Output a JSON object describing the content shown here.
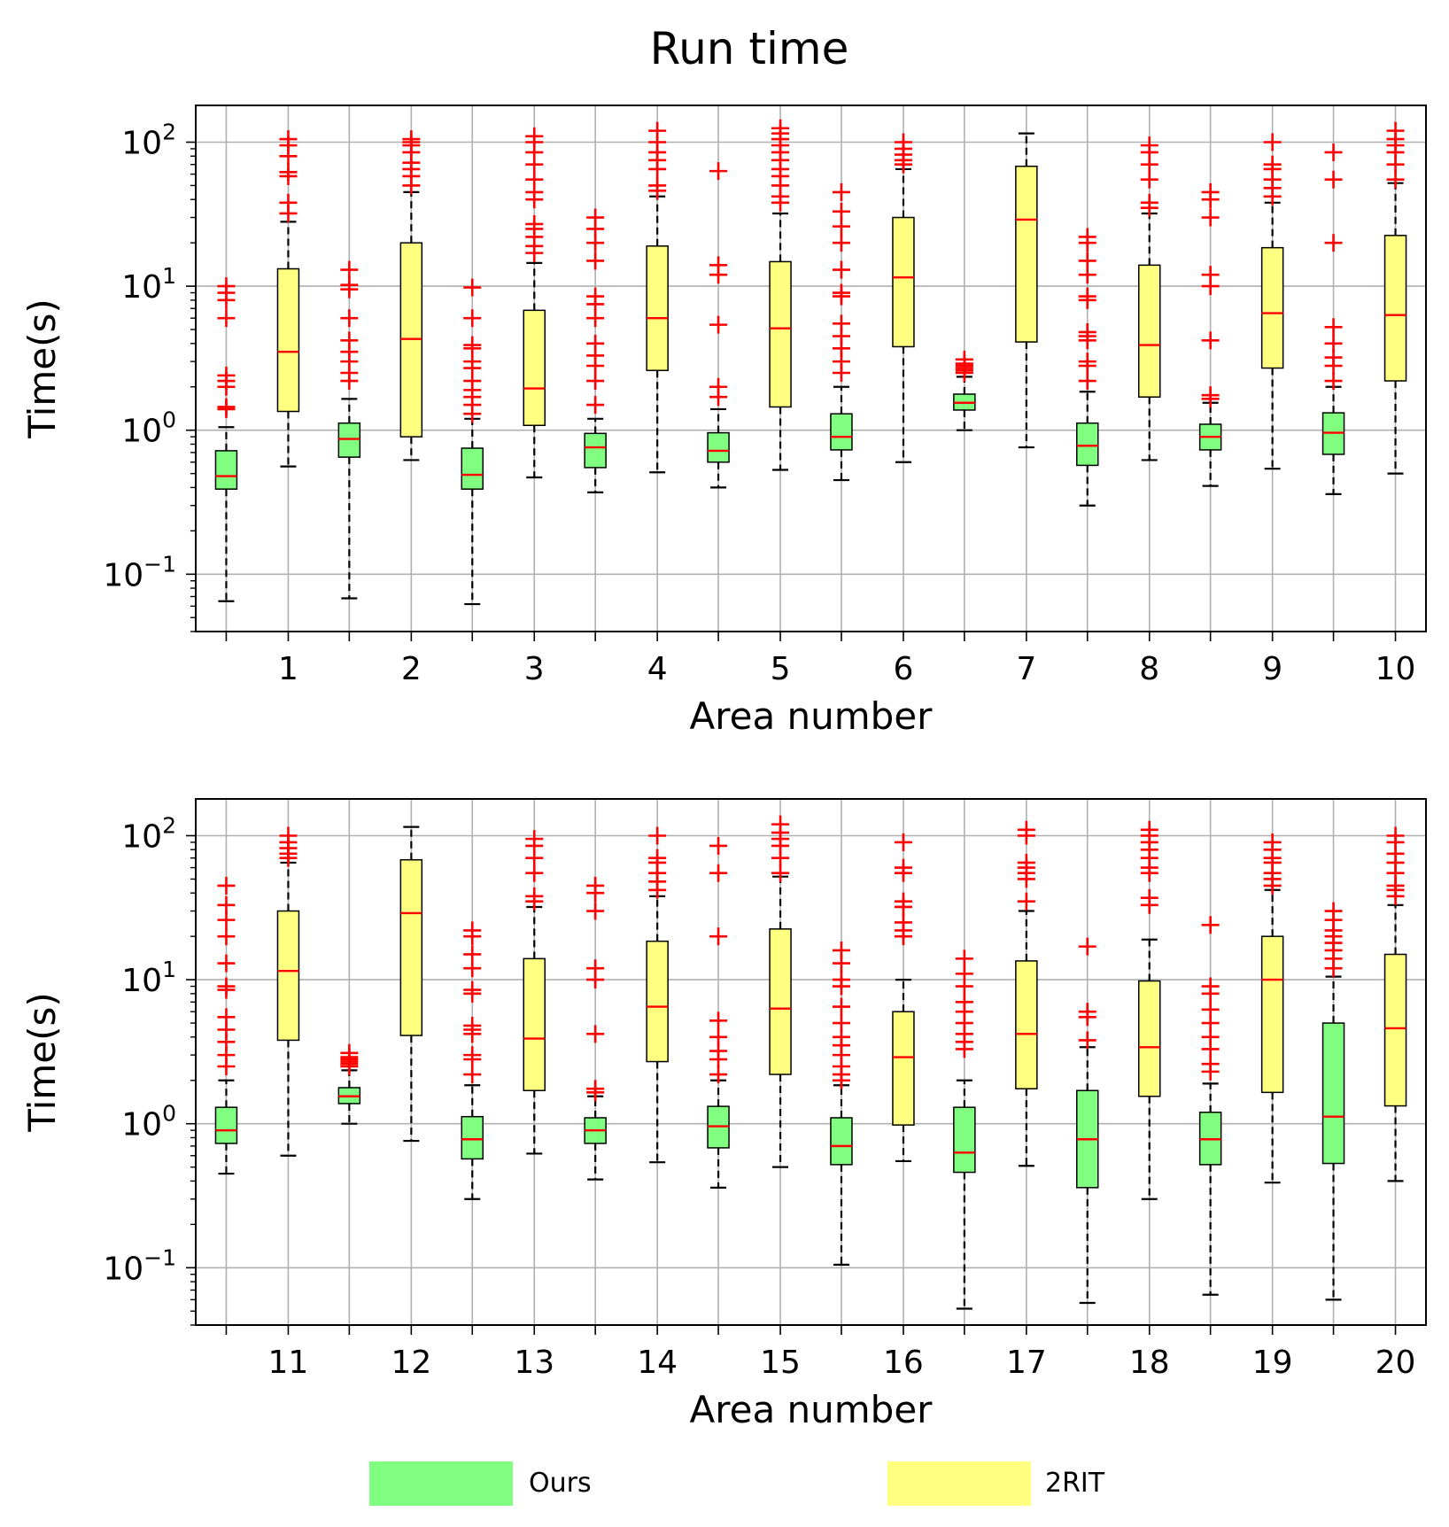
{
  "title": "Run time",
  "legend": [
    {
      "label": "Ours",
      "color": "#80ff80"
    },
    {
      "label": "2RIT",
      "color": "#ffff80"
    }
  ],
  "colors": {
    "median": "#ff0000",
    "outlier": "#ff0000",
    "whisker": "#000000",
    "grid": "#b0b0b0",
    "box_edge": "#000000"
  },
  "chart_data": [
    {
      "type": "boxplot",
      "xlabel": "Area number",
      "ylabel": "Time(s)",
      "yscale": "log",
      "ylim": [
        0.04,
        180
      ],
      "yticks": [
        {
          "base": "10",
          "exp": "2",
          "value": 100
        },
        {
          "base": "10",
          "exp": "1",
          "value": 10
        },
        {
          "base": "10",
          "exp": "0",
          "value": 1
        },
        {
          "base": "10",
          "exp": "−1",
          "value": 0.1
        }
      ],
      "grid": true,
      "categories": [
        "1",
        "2",
        "3",
        "4",
        "5",
        "6",
        "7",
        "8",
        "9",
        "10"
      ],
      "series": [
        {
          "name": "Ours",
          "boxes": [
            {
              "min": 0.065,
              "q1": 0.39,
              "median": 0.48,
              "q3": 0.72,
              "max": 1.05,
              "outliers": [
                1.4,
                1.45,
                2.0,
                2.2,
                2.4,
                6.0,
                8.0,
                9.0,
                10.0
              ]
            },
            {
              "min": 0.068,
              "q1": 0.65,
              "median": 0.87,
              "q3": 1.12,
              "max": 1.65,
              "outliers": [
                2.2,
                2.5,
                3.0,
                3.5,
                4.2,
                6.0,
                9.5,
                10.2,
                13.0
              ]
            },
            {
              "min": 0.062,
              "q1": 0.39,
              "median": 0.49,
              "q3": 0.75,
              "max": 1.2,
              "outliers": [
                1.3,
                1.5,
                1.7,
                1.9,
                2.2,
                2.7,
                3.0,
                3.7,
                3.9,
                6.0,
                9.8
              ]
            },
            {
              "min": 0.37,
              "q1": 0.55,
              "median": 0.76,
              "q3": 0.95,
              "max": 1.2,
              "outliers": [
                1.5,
                2.2,
                2.8,
                3.3,
                4.0,
                6.0,
                7.5,
                8.5,
                15.0,
                20.0,
                25.0,
                30.0
              ]
            },
            {
              "min": 0.4,
              "q1": 0.6,
              "median": 0.72,
              "q3": 0.96,
              "max": 1.4,
              "outliers": [
                1.7,
                2.0,
                5.4,
                12.0,
                14.0,
                63.0
              ]
            },
            {
              "min": 0.45,
              "q1": 0.73,
              "median": 0.9,
              "q3": 1.3,
              "max": 2.0,
              "outliers": [
                2.5,
                3.0,
                3.7,
                4.5,
                5.5,
                8.5,
                9.0,
                13.0,
                20.0,
                26.0,
                33.0,
                45.0
              ]
            },
            {
              "min": 1.0,
              "q1": 1.38,
              "median": 1.55,
              "q3": 1.78,
              "max": 2.35,
              "outliers": [
                2.5,
                2.6,
                2.7,
                2.8,
                2.9,
                3.1
              ]
            },
            {
              "min": 0.3,
              "q1": 0.57,
              "median": 0.78,
              "q3": 1.12,
              "max": 1.85,
              "outliers": [
                2.2,
                2.8,
                3.0,
                4.2,
                4.5,
                4.8,
                8.0,
                8.5,
                12.0,
                15.0,
                20.0,
                22.0
              ]
            },
            {
              "min": 0.41,
              "q1": 0.73,
              "median": 0.9,
              "q3": 1.1,
              "max": 1.55,
              "outliers": [
                1.65,
                1.75,
                4.2,
                10.0,
                12.0,
                30.0,
                40.0,
                45.0
              ]
            },
            {
              "min": 0.36,
              "q1": 0.68,
              "median": 0.96,
              "q3": 1.32,
              "max": 2.0,
              "outliers": [
                2.2,
                2.8,
                3.2,
                4.0,
                5.2,
                20.0,
                55.0,
                85.0
              ]
            }
          ]
        },
        {
          "name": "2RIT",
          "boxes": [
            {
              "min": 0.56,
              "q1": 1.35,
              "median": 3.5,
              "q3": 13.2,
              "max": 28.0,
              "outliers": [
                32.0,
                38.0,
                58.0,
                62.0,
                80.0,
                95.0,
                105.0
              ]
            },
            {
              "min": 0.62,
              "q1": 0.9,
              "median": 4.3,
              "q3": 20.0,
              "max": 45.0,
              "outliers": [
                50.0,
                58.0,
                65.0,
                72.0,
                85.0,
                95.0,
                100.0,
                105.0
              ]
            },
            {
              "min": 0.47,
              "q1": 1.08,
              "median": 1.95,
              "q3": 6.8,
              "max": 14.5,
              "outliers": [
                17.0,
                19.0,
                22.0,
                25.0,
                27.0,
                40.0,
                45.0,
                55.0,
                70.0,
                85.0,
                100.0,
                110.0
              ]
            },
            {
              "min": 0.51,
              "q1": 2.6,
              "median": 6.0,
              "q3": 19.0,
              "max": 42.0,
              "outliers": [
                46.0,
                50.0,
                65.0,
                75.0,
                85.0,
                100.0,
                120.0
              ]
            },
            {
              "min": 0.53,
              "q1": 1.45,
              "median": 5.1,
              "q3": 14.8,
              "max": 32.0,
              "outliers": [
                38.0,
                42.0,
                50.0,
                58.0,
                65.0,
                75.0,
                85.0,
                95.0,
                105.0,
                115.0,
                125.0
              ]
            },
            {
              "min": 0.6,
              "q1": 3.8,
              "median": 11.5,
              "q3": 30.0,
              "max": 65.0,
              "outliers": [
                70.0,
                75.0,
                82.0,
                90.0,
                100.0
              ]
            },
            {
              "min": 0.76,
              "q1": 4.1,
              "median": 29.0,
              "q3": 68.0,
              "max": 115.0,
              "outliers": []
            },
            {
              "min": 0.62,
              "q1": 1.7,
              "median": 3.9,
              "q3": 14.0,
              "max": 32.0,
              "outliers": [
                35.0,
                38.0,
                55.0,
                70.0,
                85.0,
                95.0
              ]
            },
            {
              "min": 0.54,
              "q1": 2.7,
              "median": 6.5,
              "q3": 18.5,
              "max": 38.0,
              "outliers": [
                42.0,
                48.0,
                55.0,
                65.0,
                70.0,
                100.0
              ]
            },
            {
              "min": 0.5,
              "q1": 2.2,
              "median": 6.3,
              "q3": 22.5,
              "max": 52.0,
              "outliers": [
                55.0,
                70.0,
                85.0,
                95.0,
                105.0,
                120.0
              ]
            }
          ]
        }
      ]
    },
    {
      "type": "boxplot",
      "xlabel": "Area number",
      "ylabel": "Time(s)",
      "yscale": "log",
      "ylim": [
        0.04,
        180
      ],
      "yticks": [
        {
          "base": "10",
          "exp": "2",
          "value": 100
        },
        {
          "base": "10",
          "exp": "1",
          "value": 10
        },
        {
          "base": "10",
          "exp": "0",
          "value": 1
        },
        {
          "base": "10",
          "exp": "−1",
          "value": 0.1
        }
      ],
      "grid": true,
      "categories": [
        "11",
        "12",
        "13",
        "14",
        "15",
        "16",
        "17",
        "18",
        "19",
        "20"
      ],
      "series": [
        {
          "name": "Ours",
          "boxes": [
            {
              "min": 0.45,
              "q1": 0.73,
              "median": 0.9,
              "q3": 1.3,
              "max": 2.0,
              "outliers": [
                2.5,
                3.0,
                3.7,
                4.5,
                5.5,
                8.5,
                9.0,
                13.0,
                20.0,
                26.0,
                33.0,
                45.0
              ]
            },
            {
              "min": 1.0,
              "q1": 1.38,
              "median": 1.55,
              "q3": 1.78,
              "max": 2.35,
              "outliers": [
                2.5,
                2.6,
                2.7,
                2.8,
                2.9,
                3.1
              ]
            },
            {
              "min": 0.3,
              "q1": 0.57,
              "median": 0.78,
              "q3": 1.12,
              "max": 1.85,
              "outliers": [
                2.2,
                2.8,
                3.0,
                4.2,
                4.5,
                4.8,
                8.0,
                8.5,
                12.0,
                15.0,
                20.0,
                22.0
              ]
            },
            {
              "min": 0.41,
              "q1": 0.73,
              "median": 0.9,
              "q3": 1.1,
              "max": 1.55,
              "outliers": [
                1.65,
                1.75,
                4.2,
                10.0,
                12.0,
                30.0,
                40.0,
                45.0
              ]
            },
            {
              "min": 0.36,
              "q1": 0.68,
              "median": 0.96,
              "q3": 1.32,
              "max": 2.0,
              "outliers": [
                2.2,
                2.8,
                3.2,
                4.0,
                5.2,
                20.0,
                55.0,
                85.0
              ]
            },
            {
              "min": 0.105,
              "q1": 0.52,
              "median": 0.7,
              "q3": 1.1,
              "max": 1.85,
              "outliers": [
                2.0,
                2.2,
                2.5,
                3.0,
                3.5,
                4.0,
                5.0,
                6.5,
                9.0,
                10.0,
                13.0,
                16.0
              ]
            },
            {
              "min": 0.052,
              "q1": 0.46,
              "median": 0.63,
              "q3": 1.3,
              "max": 2.0,
              "outliers": [
                3.3,
                3.7,
                4.2,
                5.0,
                6.0,
                7.0,
                9.0,
                11.0,
                14.0
              ]
            },
            {
              "min": 0.057,
              "q1": 0.36,
              "median": 0.78,
              "q3": 1.7,
              "max": 3.4,
              "outliers": [
                3.8,
                5.5,
                6.0,
                17.0
              ]
            },
            {
              "min": 0.065,
              "q1": 0.52,
              "median": 0.78,
              "q3": 1.2,
              "max": 1.9,
              "outliers": [
                2.3,
                2.6,
                3.3,
                4.0,
                5.0,
                6.2,
                8.0,
                9.0,
                24.0
              ]
            },
            {
              "min": 0.06,
              "q1": 0.53,
              "median": 1.12,
              "q3": 5.0,
              "max": 10.5,
              "outliers": [
                12.0,
                14.0,
                16.0,
                18.0,
                20.0,
                22.0,
                26.0,
                30.0
              ]
            }
          ]
        },
        {
          "name": "2RIT",
          "boxes": [
            {
              "min": 0.6,
              "q1": 3.8,
              "median": 11.5,
              "q3": 30.0,
              "max": 65.0,
              "outliers": [
                70.0,
                75.0,
                82.0,
                90.0,
                100.0
              ]
            },
            {
              "min": 0.76,
              "q1": 4.1,
              "median": 29.0,
              "q3": 68.0,
              "max": 115.0,
              "outliers": []
            },
            {
              "min": 0.62,
              "q1": 1.7,
              "median": 3.9,
              "q3": 14.0,
              "max": 32.0,
              "outliers": [
                35.0,
                38.0,
                55.0,
                70.0,
                85.0,
                95.0
              ]
            },
            {
              "min": 0.54,
              "q1": 2.7,
              "median": 6.5,
              "q3": 18.5,
              "max": 38.0,
              "outliers": [
                42.0,
                48.0,
                55.0,
                65.0,
                70.0,
                100.0
              ]
            },
            {
              "min": 0.5,
              "q1": 2.2,
              "median": 6.3,
              "q3": 22.5,
              "max": 52.0,
              "outliers": [
                55.0,
                70.0,
                85.0,
                95.0,
                105.0,
                120.0
              ]
            },
            {
              "min": 0.55,
              "q1": 0.98,
              "median": 2.9,
              "q3": 6.0,
              "max": 10.0,
              "outliers": [
                20.0,
                22.0,
                25.0,
                32.0,
                35.0,
                55.0,
                60.0,
                90.0
              ]
            },
            {
              "min": 0.51,
              "q1": 1.75,
              "median": 4.2,
              "q3": 13.5,
              "max": 30.0,
              "outliers": [
                35.0,
                50.0,
                55.0,
                60.0,
                65.0,
                100.0,
                110.0
              ]
            },
            {
              "min": 0.3,
              "q1": 1.55,
              "median": 3.4,
              "q3": 9.8,
              "max": 19.0,
              "outliers": [
                33.0,
                37.0,
                55.0,
                60.0,
                70.0,
                80.0,
                90.0,
                100.0,
                110.0
              ]
            },
            {
              "min": 0.39,
              "q1": 1.65,
              "median": 10.0,
              "q3": 20.0,
              "max": 42.0,
              "outliers": [
                45.0,
                50.0,
                55.0,
                65.0,
                70.0,
                80.0,
                90.0
              ]
            },
            {
              "min": 0.4,
              "q1": 1.33,
              "median": 4.6,
              "q3": 15.0,
              "max": 33.0,
              "outliers": [
                38.0,
                42.0,
                45.0,
                55.0,
                65.0,
                75.0,
                90.0,
                100.0
              ]
            }
          ]
        }
      ]
    }
  ]
}
